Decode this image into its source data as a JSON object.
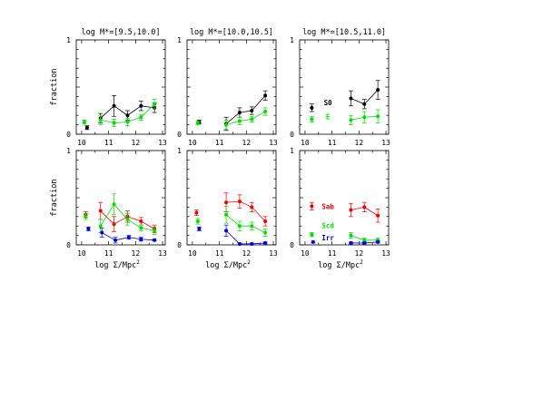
{
  "figure": {
    "ylabel": "fraction",
    "xlabel_text": "log Σ/Mpc",
    "xlabel_sup": "2",
    "x_ticks": [
      "10",
      "11",
      "12",
      "13"
    ],
    "y_ticks": [
      "0",
      "1"
    ],
    "titles": [
      "log M*=[9.5,10.0]",
      "log M*=[10.0,10.5]",
      "log M*=[10.5,11.0]"
    ]
  },
  "chart_data": [
    {
      "type": "scatter",
      "row": "top",
      "column": 1,
      "title": "log M*=[9.5,10.0]",
      "xlabel": "",
      "ylabel": "fraction",
      "xlim": [
        9.8,
        13.1
      ],
      "ylim": [
        0,
        1
      ],
      "series": [
        {
          "label": "S0",
          "color": "#000000",
          "x": [
            10.2,
            10.7,
            11.2,
            11.7,
            12.2,
            12.7
          ],
          "y": [
            0.07,
            0.17,
            0.3,
            0.2,
            0.3,
            0.28
          ],
          "err": [
            0.02,
            0.05,
            0.11,
            0.05,
            0.05,
            0.05
          ],
          "connect_from": 1
        },
        {
          "label": "E",
          "color": "#00dd00",
          "x": [
            10.1,
            10.7,
            11.2,
            11.7,
            12.2,
            12.7
          ],
          "y": [
            0.13,
            0.15,
            0.12,
            0.13,
            0.18,
            0.32
          ],
          "err": [
            0.02,
            0.05,
            0.04,
            0.04,
            0.03,
            0.05
          ],
          "connect_from": 1
        }
      ]
    },
    {
      "type": "scatter",
      "row": "top",
      "column": 2,
      "title": "log M*=[10.0,10.5]",
      "xlabel": "",
      "ylabel": "",
      "xlim": [
        9.8,
        13.1
      ],
      "ylim": [
        0,
        1
      ],
      "series": [
        {
          "label": "S0",
          "color": "#000000",
          "x": [
            10.25,
            11.25,
            11.75,
            12.2,
            12.7
          ],
          "y": [
            0.13,
            0.11,
            0.23,
            0.25,
            0.41
          ],
          "err": [
            0.02,
            0.07,
            0.05,
            0.04,
            0.05
          ],
          "connect_from": 1
        },
        {
          "label": "E",
          "color": "#00dd00",
          "x": [
            10.2,
            11.25,
            11.75,
            12.2,
            12.7
          ],
          "y": [
            0.12,
            0.1,
            0.14,
            0.16,
            0.24
          ],
          "err": [
            0.02,
            0.05,
            0.04,
            0.03,
            0.04
          ],
          "connect_from": 1
        }
      ]
    },
    {
      "type": "scatter",
      "row": "top",
      "column": 3,
      "title": "log M*=[10.5,11.0]",
      "xlabel": "",
      "ylabel": "",
      "xlim": [
        9.8,
        13.1
      ],
      "ylim": [
        0,
        1
      ],
      "annotations": [
        {
          "text": "S0",
          "color": "#000000",
          "x": 10.85,
          "y": 0.31
        },
        {
          "text": "E",
          "color": "#00dd00",
          "x": 10.85,
          "y": 0.16
        }
      ],
      "series": [
        {
          "label": "S0",
          "color": "#000000",
          "x": [
            10.25,
            11.7,
            12.2,
            12.7
          ],
          "y": [
            0.28,
            0.38,
            0.32,
            0.47
          ],
          "err": [
            0.04,
            0.08,
            0.05,
            0.1
          ],
          "connect_from": 1
        },
        {
          "label": "E",
          "color": "#00dd00",
          "x": [
            10.25,
            11.7,
            12.2,
            12.7
          ],
          "y": [
            0.16,
            0.15,
            0.18,
            0.19
          ],
          "err": [
            0.03,
            0.05,
            0.06,
            0.07
          ],
          "connect_from": 1
        }
      ]
    },
    {
      "type": "scatter",
      "row": "bottom",
      "column": 1,
      "title": "",
      "xlabel": "log Σ/Mpc²",
      "ylabel": "fraction",
      "xlim": [
        9.8,
        13.1
      ],
      "ylim": [
        0,
        1
      ],
      "series": [
        {
          "label": "Sab",
          "color": "#ee0000",
          "x": [
            10.15,
            10.7,
            11.2,
            11.7,
            12.2,
            12.7
          ],
          "y": [
            0.32,
            0.36,
            0.22,
            0.3,
            0.25,
            0.17
          ],
          "err": [
            0.03,
            0.09,
            0.08,
            0.06,
            0.04,
            0.04
          ],
          "connect_from": 1
        },
        {
          "label": "Scd",
          "color": "#00dd00",
          "x": [
            10.15,
            10.7,
            11.2,
            11.7,
            12.2,
            12.7
          ],
          "y": [
            0.3,
            0.2,
            0.43,
            0.27,
            0.18,
            0.15
          ],
          "err": [
            0.03,
            0.07,
            0.11,
            0.06,
            0.03,
            0.04
          ],
          "connect_from": 1
        },
        {
          "label": "Irr",
          "color": "#0000dd",
          "x": [
            10.25,
            10.75,
            11.25,
            11.75,
            12.2,
            12.7
          ],
          "y": [
            0.17,
            0.13,
            0.05,
            0.08,
            0.06,
            0.05
          ],
          "err": [
            0.02,
            0.05,
            0.03,
            0.02,
            0.02,
            0.01
          ],
          "connect_from": 1
        }
      ]
    },
    {
      "type": "scatter",
      "row": "bottom",
      "column": 2,
      "title": "",
      "xlabel": "log Σ/Mpc²",
      "ylabel": "",
      "xlim": [
        9.8,
        13.1
      ],
      "ylim": [
        0,
        1
      ],
      "series": [
        {
          "label": "Sab",
          "color": "#ee0000",
          "x": [
            10.15,
            11.25,
            11.75,
            12.2,
            12.7
          ],
          "y": [
            0.34,
            0.45,
            0.46,
            0.4,
            0.25
          ],
          "err": [
            0.03,
            0.1,
            0.07,
            0.05,
            0.05
          ],
          "connect_from": 1
        },
        {
          "label": "Scd",
          "color": "#00dd00",
          "x": [
            10.2,
            11.25,
            11.75,
            12.2,
            12.7
          ],
          "y": [
            0.25,
            0.32,
            0.2,
            0.2,
            0.13
          ],
          "err": [
            0.03,
            0.09,
            0.05,
            0.04,
            0.04
          ],
          "connect_from": 1
        },
        {
          "label": "Irr",
          "color": "#0000dd",
          "x": [
            10.25,
            11.25,
            11.75,
            12.2,
            12.7
          ],
          "y": [
            0.17,
            0.15,
            0.01,
            0.01,
            0.02
          ],
          "err": [
            0.02,
            0.06,
            0.01,
            0.01,
            0.01
          ],
          "connect_from": 1
        }
      ]
    },
    {
      "type": "scatter",
      "row": "bottom",
      "column": 3,
      "title": "",
      "xlabel": "log Σ/Mpc²",
      "ylabel": "",
      "xlim": [
        9.8,
        13.1
      ],
      "ylim": [
        0,
        1
      ],
      "annotations": [
        {
          "text": "Sab",
          "color": "#ee0000",
          "x": 10.85,
          "y": 0.38
        },
        {
          "text": "Scd",
          "color": "#00dd00",
          "x": 10.85,
          "y": 0.18
        },
        {
          "text": "Irr",
          "color": "#0000dd",
          "x": 10.85,
          "y": 0.05
        }
      ],
      "series": [
        {
          "label": "Sab",
          "color": "#ee0000",
          "x": [
            10.25,
            11.7,
            12.2,
            12.7
          ],
          "y": [
            0.41,
            0.37,
            0.4,
            0.31
          ],
          "err": [
            0.04,
            0.07,
            0.05,
            0.07
          ],
          "connect_from": 1
        },
        {
          "label": "Scd",
          "color": "#00dd00",
          "x": [
            10.25,
            11.7,
            12.2,
            12.7
          ],
          "y": [
            0.11,
            0.1,
            0.05,
            0.05
          ],
          "err": [
            0.02,
            0.03,
            0.02,
            0.02
          ],
          "connect_from": 1
        },
        {
          "label": "Irr",
          "color": "#0000dd",
          "x": [
            10.3,
            11.7,
            12.2,
            12.7
          ],
          "y": [
            0.03,
            0.02,
            0.02,
            0.03
          ],
          "err": [
            0.01,
            0.01,
            0.01,
            0.01
          ],
          "connect_from": 1
        }
      ]
    }
  ]
}
